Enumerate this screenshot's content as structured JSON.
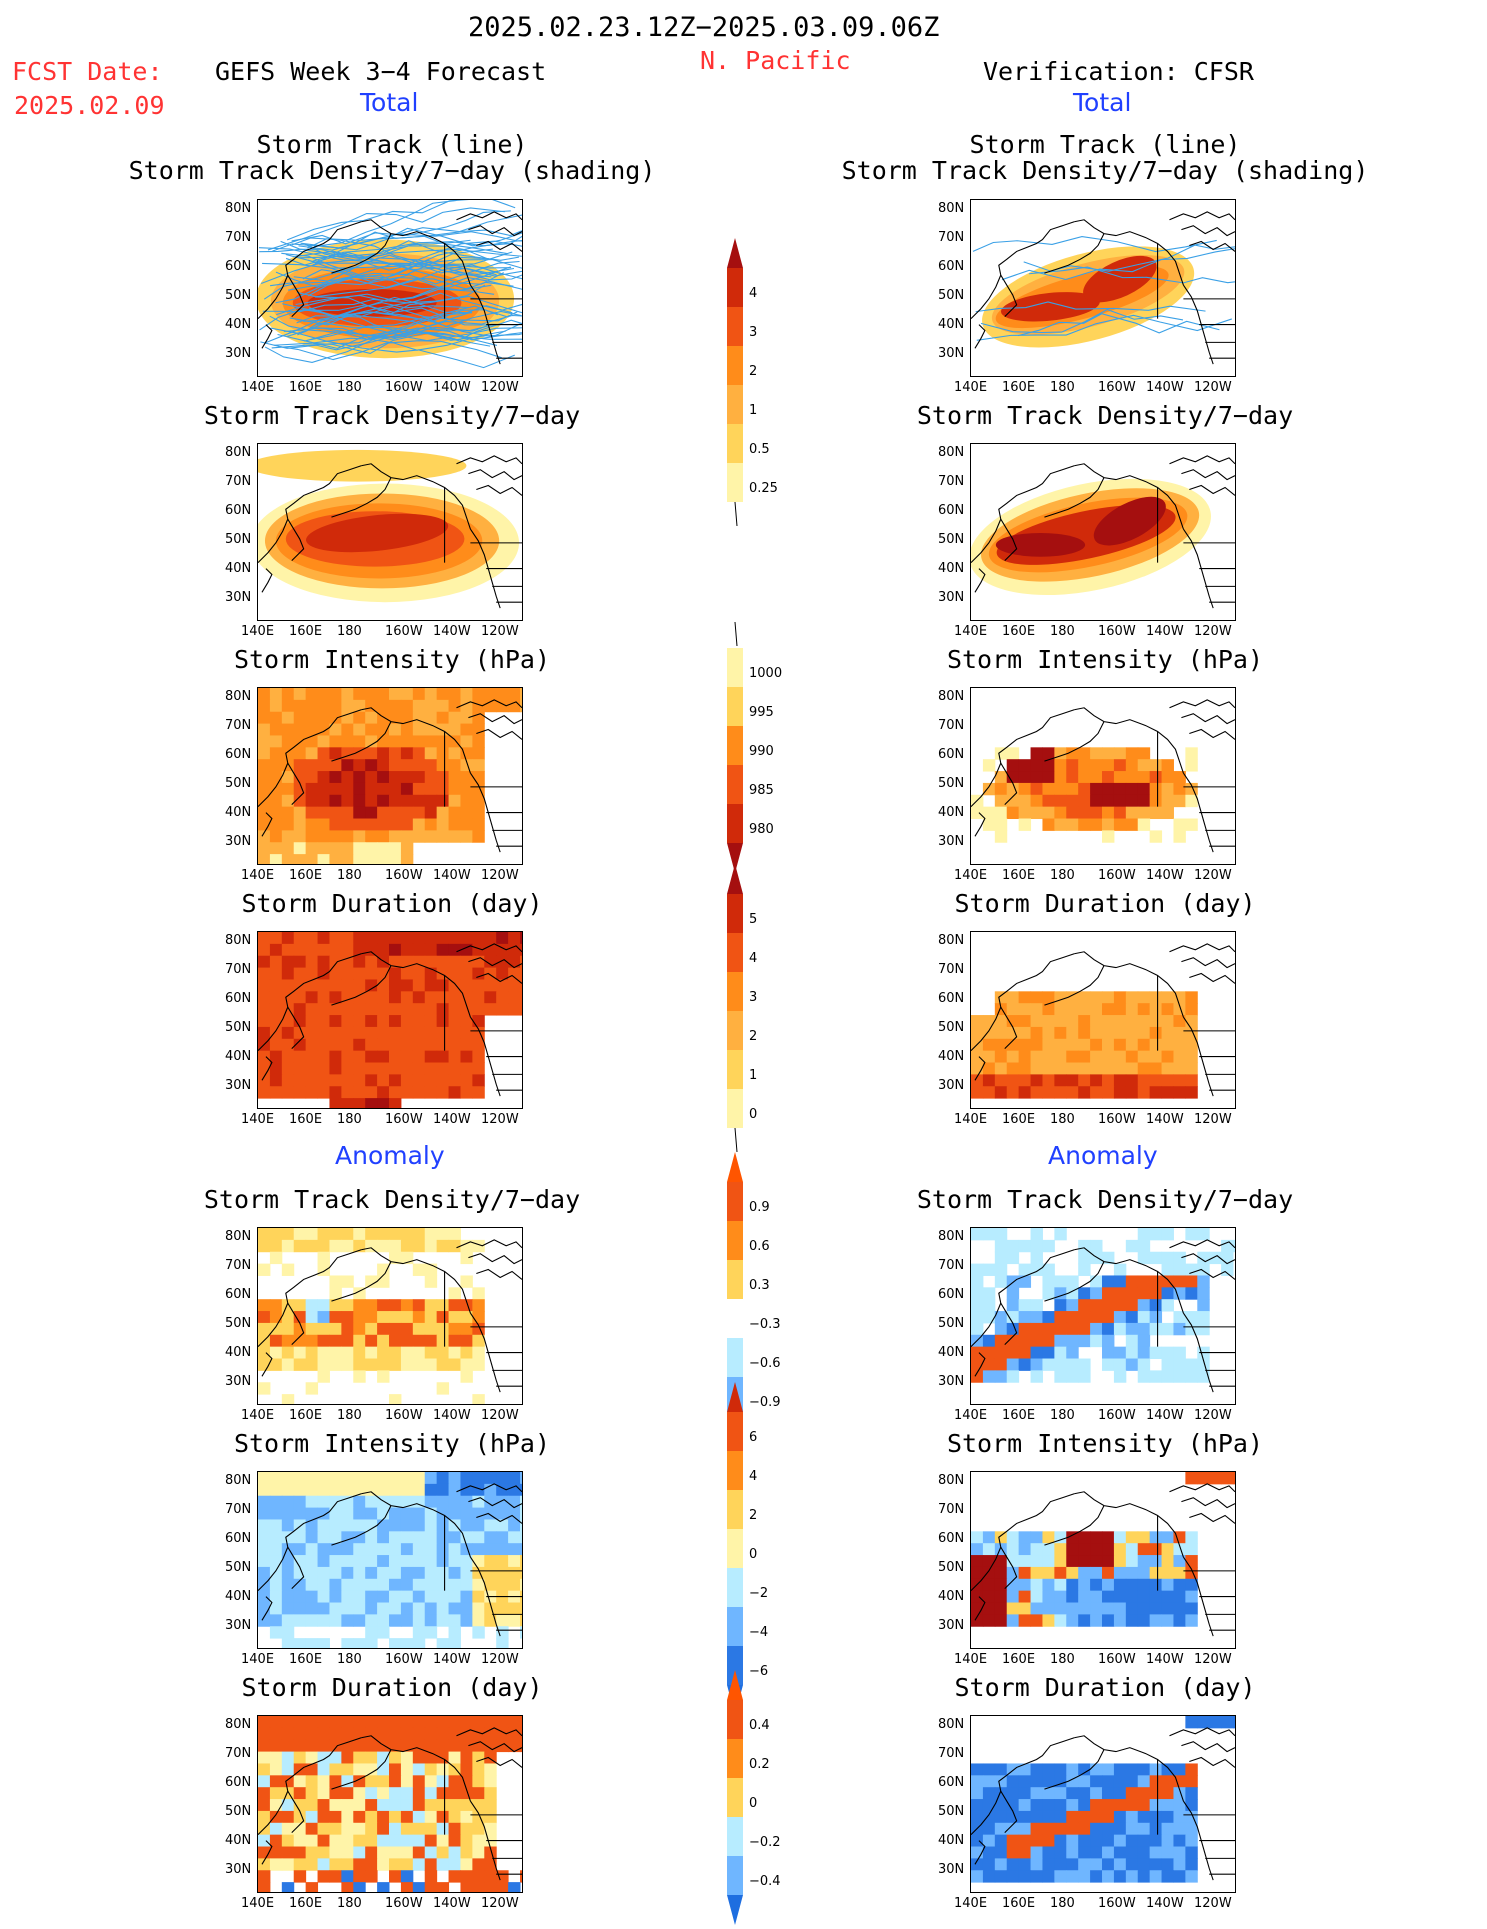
{
  "header": {
    "date_range": "2025.02.23.12Z−2025.03.09.06Z",
    "region": "N. Pacific",
    "fcst_label": "FCST Date:",
    "fcst_date": "2025.02.09",
    "left_title": "GEFS Week 3−4 Forecast",
    "right_title": "Verification: CFSR"
  },
  "sections": {
    "total": "Total",
    "anomaly": "Anomaly"
  },
  "panel_titles": {
    "track_line": "Storm Track (line)",
    "track_shading": "Storm Track Density/7−day (shading)",
    "density": "Storm Track Density/7−day",
    "intensity": "Storm Intensity (hPa)",
    "duration": "Storm Duration (day)"
  },
  "axes": {
    "lat_labels": [
      "80N",
      "70N",
      "60N",
      "50N",
      "40N",
      "30N"
    ],
    "lon_labels": [
      "140E",
      "160E",
      "180",
      "160W",
      "140W",
      "120W"
    ]
  },
  "colorbars": {
    "density_total": [
      "4",
      "3",
      "2",
      "1",
      "0.5",
      "0.25"
    ],
    "intensity_total": [
      "1000",
      "995",
      "990",
      "985",
      "980"
    ],
    "duration_total": [
      "5",
      "4",
      "3",
      "2",
      "1",
      "0"
    ],
    "density_anom": [
      "0.9",
      "0.6",
      "0.3",
      "−0.3",
      "−0.6",
      "−0.9"
    ],
    "intensity_anom": [
      "6",
      "4",
      "2",
      "0",
      "−2",
      "−4",
      "−6"
    ],
    "duration_anom": [
      "0.4",
      "0.2",
      "0",
      "−0.2",
      "−0.4"
    ]
  },
  "colors": {
    "pale_yellow": "#fff4a8",
    "yellow": "#ffd45a",
    "light_orange": "#ffb040",
    "orange": "#ff8c1a",
    "red_orange": "#f05414",
    "red": "#d02a0a",
    "dark_red": "#a50f0f",
    "light_blue": "#b7ecff",
    "mid_blue": "#6fb6ff",
    "blue": "#2b78e4",
    "track_line": "#3aa0e6"
  }
}
